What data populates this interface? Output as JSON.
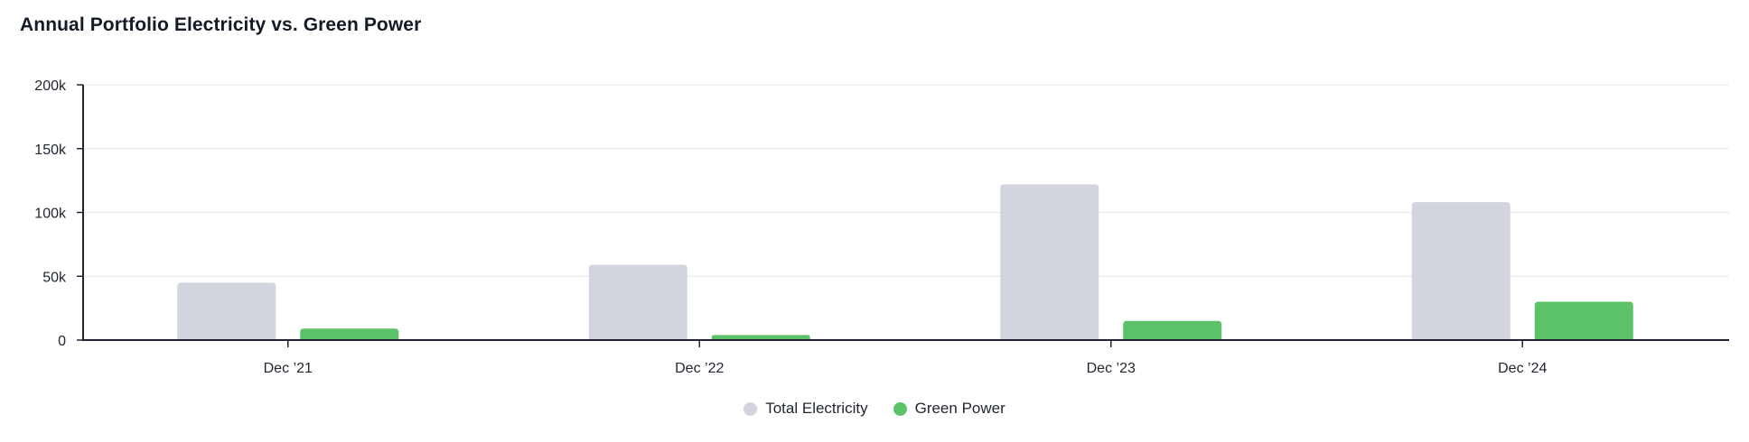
{
  "chart_data": {
    "type": "bar",
    "title": "Annual Portfolio Electricity vs. Green Power",
    "categories": [
      "Dec ’21",
      "Dec ’22",
      "Dec ’23",
      "Dec ’24"
    ],
    "series": [
      {
        "name": "Total Electricity",
        "color": "#d3d5de",
        "values": [
          45000,
          59000,
          122000,
          108000
        ]
      },
      {
        "name": "Green Power",
        "color": "#5cc26a",
        "values": [
          9000,
          4000,
          15000,
          30000
        ]
      }
    ],
    "ylim": [
      0,
      200000
    ],
    "yticks": [
      0,
      50000,
      100000,
      150000,
      200000
    ],
    "ytick_labels": [
      "0",
      "50k",
      "100k",
      "150k",
      "200k"
    ],
    "grid": true,
    "legend_position": "bottom-center"
  }
}
